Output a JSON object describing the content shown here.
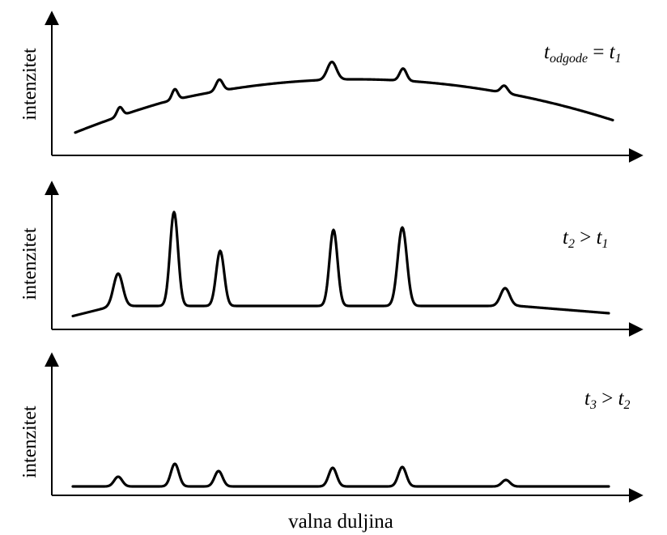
{
  "panels": [
    {
      "ylabel": "intenzitet",
      "condition": {
        "t": "t",
        "sub": "odgode",
        "op": " = ",
        "rt": "t",
        "rsub": "1"
      }
    },
    {
      "ylabel": "intenzitet",
      "condition": {
        "t": "t",
        "sub": "2",
        "op": " > ",
        "rt": "t",
        "rsub": "1"
      }
    },
    {
      "ylabel": "intenzitet",
      "condition": {
        "t": "t",
        "sub": "3",
        "op": " > ",
        "rt": "t",
        "rsub": "2"
      }
    }
  ],
  "xlabel": "valna duljina"
}
